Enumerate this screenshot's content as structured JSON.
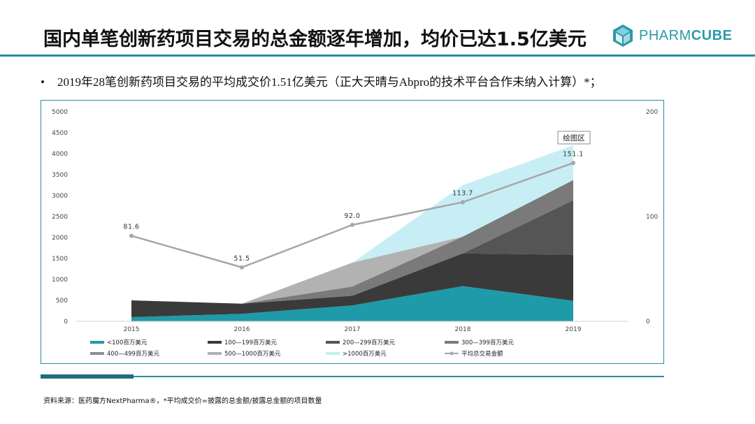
{
  "header": {
    "title": "国内单笔创新药项目交易的总金额逐年增加，均价已达1.5亿美元",
    "logo_text_light": "PHARM",
    "logo_text_bold": "CUBE"
  },
  "bullet": {
    "marker": "•",
    "text": "2019年28笔创新药项目交易的平均成交价1.51亿美元（正大天晴与Abpro的技术平台合作未纳入计算）*；"
  },
  "tooltip": "绘图区",
  "source": "资料来源：医药魔方NextPharma®，*平均成交价=披露的总金额/披露总金额的项目数量",
  "colors": {
    "accent": "#2a8c9a",
    "s1": "#1f9aa8",
    "s2": "#3a3a3a",
    "s3": "#555555",
    "s4": "#7a7a7a",
    "s5": "#8e8e8e",
    "s6": "#b2b2b2",
    "s7": "#c8eef5",
    "line": "#a6a6a6"
  },
  "chart_data": {
    "type": "area",
    "stacked": true,
    "categories": [
      "2015",
      "2016",
      "2017",
      "2018",
      "2019"
    ],
    "ylim": [
      0,
      5000
    ],
    "yticks": [
      "0",
      "500",
      "1000",
      "1500",
      "2000",
      "2500",
      "3000",
      "3500",
      "4000",
      "4500",
      "5000"
    ],
    "y2lim": [
      0,
      200
    ],
    "y2ticks": [
      "0",
      "100",
      "200"
    ],
    "series": [
      {
        "name": "<100百万美元",
        "values": [
          100,
          180,
          380,
          840,
          490
        ],
        "color": "#1f9aa8"
      },
      {
        "name": "100—199百万美元",
        "values": [
          400,
          240,
          230,
          780,
          1100
        ],
        "color": "#3a3a3a"
      },
      {
        "name": "200—299百万美元",
        "values": [
          0,
          0,
          0,
          0,
          1300
        ],
        "color": "#555555"
      },
      {
        "name": "300—399百万美元",
        "values": [
          0,
          0,
          220,
          400,
          480
        ],
        "color": "#7a7a7a"
      },
      {
        "name": "400—499百万美元",
        "values": [
          0,
          0,
          0,
          0,
          0
        ],
        "color": "#8e8e8e"
      },
      {
        "name": "500—1000百万美元",
        "values": [
          0,
          0,
          570,
          0,
          0
        ],
        "color": "#b2b2b2"
      },
      {
        "name": ">1000百万美元",
        "values": [
          0,
          0,
          0,
          1230,
          830
        ],
        "color": "#c8eef5"
      }
    ],
    "line_series": {
      "name": "平均总交易金额",
      "values": [
        81.6,
        51.5,
        92.0,
        113.7,
        151.1
      ],
      "labels": [
        "81.6",
        "51.5",
        "92.0",
        "113.7",
        "151.1"
      ],
      "axis": "right",
      "color": "#a6a6a6"
    },
    "legend_position": "bottom"
  }
}
